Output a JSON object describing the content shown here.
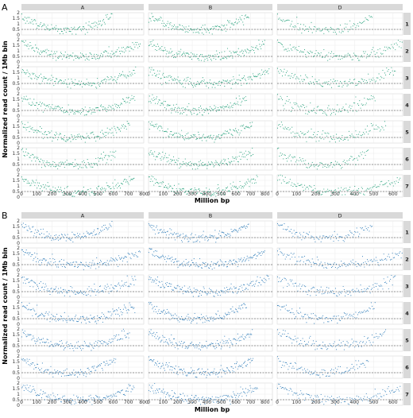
{
  "chart_data": [
    {
      "type": "scatter",
      "panel_label": "A",
      "point_color": "#1f9e77",
      "xlabel": "Million bp",
      "ylabel": "Normalized read count / 1Mb bin",
      "columns": [
        "A",
        "B",
        "D"
      ],
      "rows": [
        "1",
        "2",
        "3",
        "4",
        "5",
        "6",
        "7"
      ],
      "ylim": [
        0,
        2
      ],
      "yticks": [
        0,
        0.5,
        1,
        1.5,
        2
      ],
      "ytick_labels": [
        "0",
        "0.5",
        "1",
        "1.5",
        "2"
      ],
      "reference_line_y": 0.5,
      "grid": true,
      "column_xlim": [
        [
          0,
          800
        ],
        [
          0,
          850
        ],
        [
          0,
          650
        ]
      ],
      "column_xticks": [
        [
          0,
          100,
          200,
          300,
          400,
          500,
          600,
          700,
          800
        ],
        [
          0,
          100,
          200,
          300,
          400,
          500,
          600,
          700,
          800
        ],
        [
          0,
          100,
          200,
          300,
          400,
          500,
          600
        ]
      ],
      "chromosome_length_mb": [
        [
          595,
          780,
          750,
          745,
          710,
          620,
          740
        ],
        [
          690,
          800,
          830,
          675,
          715,
          720,
          750
        ],
        [
          495,
          650,
          615,
          510,
          565,
          475,
          640
        ]
      ],
      "series_trend": "high read counts (~1.5) near chromosome ends, low (~0.5) in pericentromeric middle"
    },
    {
      "type": "scatter",
      "panel_label": "B",
      "point_color": "#2a7ab8",
      "xlabel": "Million bp",
      "ylabel": "Normalized read count / 1Mb bin",
      "columns": [
        "A",
        "B",
        "D"
      ],
      "rows": [
        "1",
        "2",
        "3",
        "4",
        "5",
        "6",
        "7"
      ],
      "ylim": [
        0,
        2
      ],
      "yticks": [
        0,
        0.5,
        1,
        1.5,
        2
      ],
      "ytick_labels": [
        "0",
        "0.5",
        "1",
        "1.5",
        "2"
      ],
      "reference_line_y": 0.5,
      "grid": true,
      "column_xlim": [
        [
          0,
          800
        ],
        [
          0,
          850
        ],
        [
          0,
          650
        ]
      ],
      "column_xticks": [
        [
          0,
          100,
          200,
          300,
          400,
          500,
          600,
          700,
          800
        ],
        [
          0,
          100,
          200,
          300,
          400,
          500,
          600,
          700,
          800
        ],
        [
          0,
          100,
          200,
          300,
          400,
          500,
          600
        ]
      ],
      "chromosome_length_mb": [
        [
          595,
          780,
          750,
          745,
          710,
          620,
          740
        ],
        [
          690,
          800,
          830,
          675,
          715,
          720,
          750
        ],
        [
          495,
          650,
          615,
          510,
          565,
          475,
          640
        ]
      ],
      "series_trend": "high read counts (~1.5) near chromosome ends, low (~0.5) in pericentromeric middle"
    }
  ]
}
